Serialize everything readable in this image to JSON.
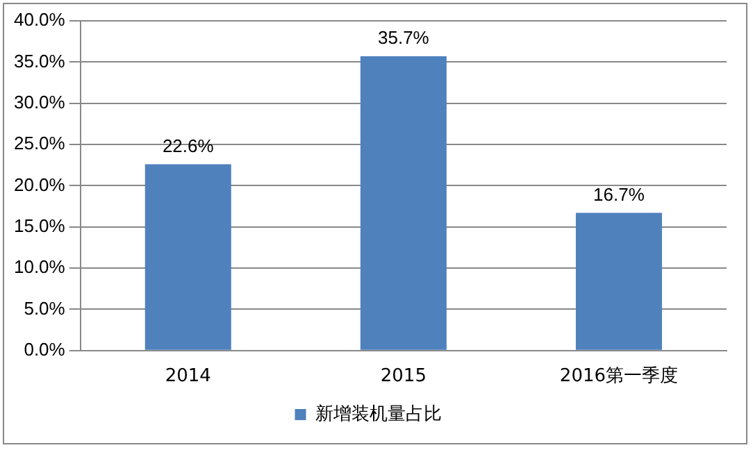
{
  "chart_data": {
    "type": "bar",
    "categories": [
      "2014",
      "2015",
      "2016第一季度"
    ],
    "series": [
      {
        "name": "新增装机量占比",
        "color": "#4f81bd",
        "values": [
          22.6,
          35.7,
          16.7
        ],
        "value_labels": [
          "22.6%",
          "35.7%",
          "16.7%"
        ]
      }
    ],
    "ylim": [
      0,
      40
    ],
    "yticks": [
      {
        "value": 0,
        "label": "0.0%"
      },
      {
        "value": 5,
        "label": "5.0%"
      },
      {
        "value": 10,
        "label": "10.0%"
      },
      {
        "value": 15,
        "label": "15.0%"
      },
      {
        "value": 20,
        "label": "20.0%"
      },
      {
        "value": 25,
        "label": "25.0%"
      },
      {
        "value": 30,
        "label": "30.0%"
      },
      {
        "value": 35,
        "label": "35.0%"
      },
      {
        "value": 40,
        "label": "40.0%"
      }
    ],
    "grid": "y",
    "legend": "bottom"
  }
}
